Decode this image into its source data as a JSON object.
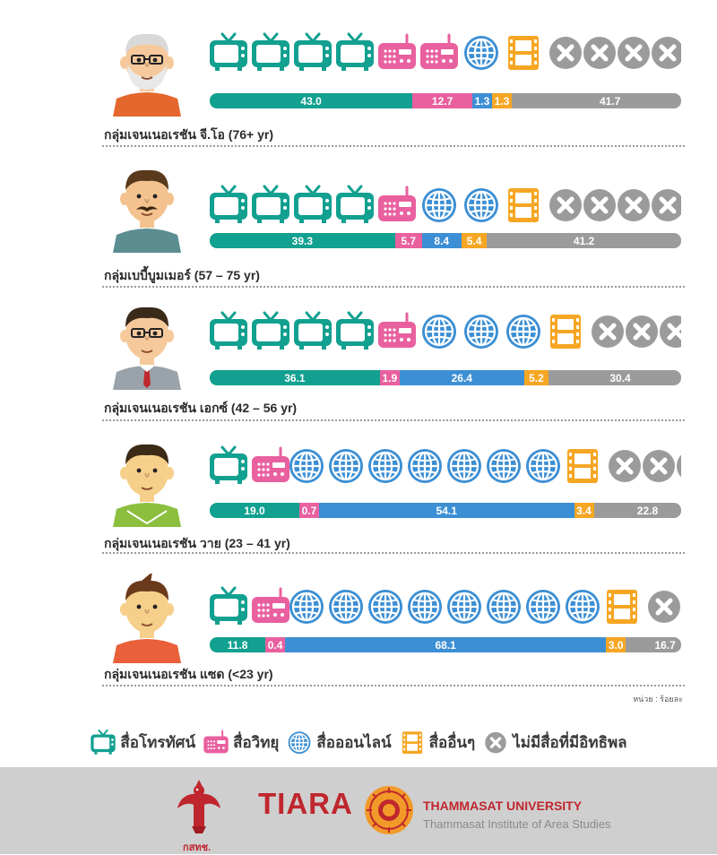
{
  "colors": {
    "tv": "#12a090",
    "radio": "#e9609f",
    "online": "#3c8fd4",
    "other": "#f6a623",
    "none": "#9b9b9b",
    "footer_bg": "#cfcfcf",
    "brand_red": "#c0262d"
  },
  "chart_data": {
    "type": "bar",
    "stacked": true,
    "orientation": "horizontal",
    "categories": [
      "กลุ่มเจนเนอเรชัน จี.โอ (76+ yr)",
      "กลุ่มเบบี้บูมเมอร์ (57 – 75 yr)",
      "กลุ่มเจนเนอเรชัน เอกซ์ (42 – 56 yr)",
      "กลุ่มเจนเนอเรชัน วาย (23 – 41 yr)",
      "กลุ่มเจนเนอเรชัน แซด (<23 yr)"
    ],
    "series": [
      {
        "name": "สื่อโทรทัศน์",
        "key": "tv",
        "values": [
          43.0,
          39.3,
          36.1,
          19.0,
          11.8
        ]
      },
      {
        "name": "สื่อวิทยุ",
        "key": "radio",
        "values": [
          12.7,
          5.7,
          1.9,
          0.7,
          0.4
        ]
      },
      {
        "name": "สื่อออนไลน์",
        "key": "online",
        "values": [
          1.3,
          8.4,
          26.4,
          54.1,
          68.1
        ]
      },
      {
        "name": "สื่ออื่นๆ",
        "key": "other",
        "values": [
          1.3,
          5.4,
          5.2,
          3.4,
          3.0
        ]
      },
      {
        "name": "ไม่มีสื่อที่มีอิทธิพล",
        "key": "none",
        "values": [
          41.7,
          41.2,
          30.4,
          22.8,
          16.7
        ]
      }
    ],
    "value_labels": [
      [
        "43.0",
        "12.7",
        "1.3",
        "1.3",
        "41.7"
      ],
      [
        "39.3",
        "5.7",
        "8.4",
        "5.4",
        "41.2"
      ],
      [
        "36.1",
        "1.9",
        "26.4",
        "5.2",
        "30.4"
      ],
      [
        "19.0",
        "0.7",
        "54.1",
        "3.4",
        "22.8"
      ],
      [
        "11.8",
        "0.4",
        "68.1",
        "3.0",
        "16.7"
      ]
    ],
    "icon_counts": [
      {
        "tv": 4,
        "radio": 2,
        "online": 1,
        "other": 1,
        "none": 4
      },
      {
        "tv": 4,
        "radio": 1,
        "online": 2,
        "other": 1,
        "none": 4
      },
      {
        "tv": 4,
        "radio": 1,
        "online": 3,
        "other": 1,
        "none": 3
      },
      {
        "tv": 1,
        "radio": 1,
        "online": 7,
        "other": 1,
        "none": 3
      },
      {
        "tv": 1,
        "radio": 1,
        "online": 8,
        "other": 1,
        "none": 2
      }
    ],
    "unit_note": "หน่วย : ร้อยละ",
    "legend_position": "bottom-center",
    "grid": false
  },
  "legend": [
    {
      "key": "tv",
      "icon": "tv-icon",
      "label": "สื่อโทรทัศน์"
    },
    {
      "key": "radio",
      "icon": "radio-icon",
      "label": "สื่อวิทยุ"
    },
    {
      "key": "online",
      "icon": "globe-icon",
      "label": "สื่อออนไลน์"
    },
    {
      "key": "other",
      "icon": "film-icon",
      "label": "สื่ออื่นๆ"
    },
    {
      "key": "none",
      "icon": "x-circle-icon",
      "label": "ไม่มีสื่อที่มีอิทธิพล"
    }
  ],
  "avatars": [
    {
      "hair": "#d9d9d9",
      "skin": "#f6c99c",
      "shirt": "#e4672e",
      "glasses": true,
      "beard": true,
      "mustache": false,
      "tie": false
    },
    {
      "hair": "#5a3a1c",
      "skin": "#f3c28e",
      "shirt": "#5b8d91",
      "glasses": false,
      "beard": false,
      "mustache": true,
      "tie": false
    },
    {
      "hair": "#3a2a1a",
      "skin": "#f6c99c",
      "shirt": "#9aa3a9",
      "glasses": true,
      "beard": false,
      "mustache": false,
      "tie": true
    },
    {
      "hair": "#3b2a16",
      "skin": "#f6cf8a",
      "shirt": "#8dbf3f",
      "glasses": false,
      "beard": false,
      "mustache": false,
      "tie": false
    },
    {
      "hair": "#6b3a1a",
      "skin": "#f6cf8a",
      "shirt": "#e9603a",
      "glasses": false,
      "beard": false,
      "mustache": false,
      "tie": false
    }
  ],
  "footer": {
    "garuda_caption": "กสทช.",
    "tiara": "TIARA",
    "university": "THAMMASAT UNIVERSITY",
    "institute": "Thammasat Institute of Area Studies"
  }
}
